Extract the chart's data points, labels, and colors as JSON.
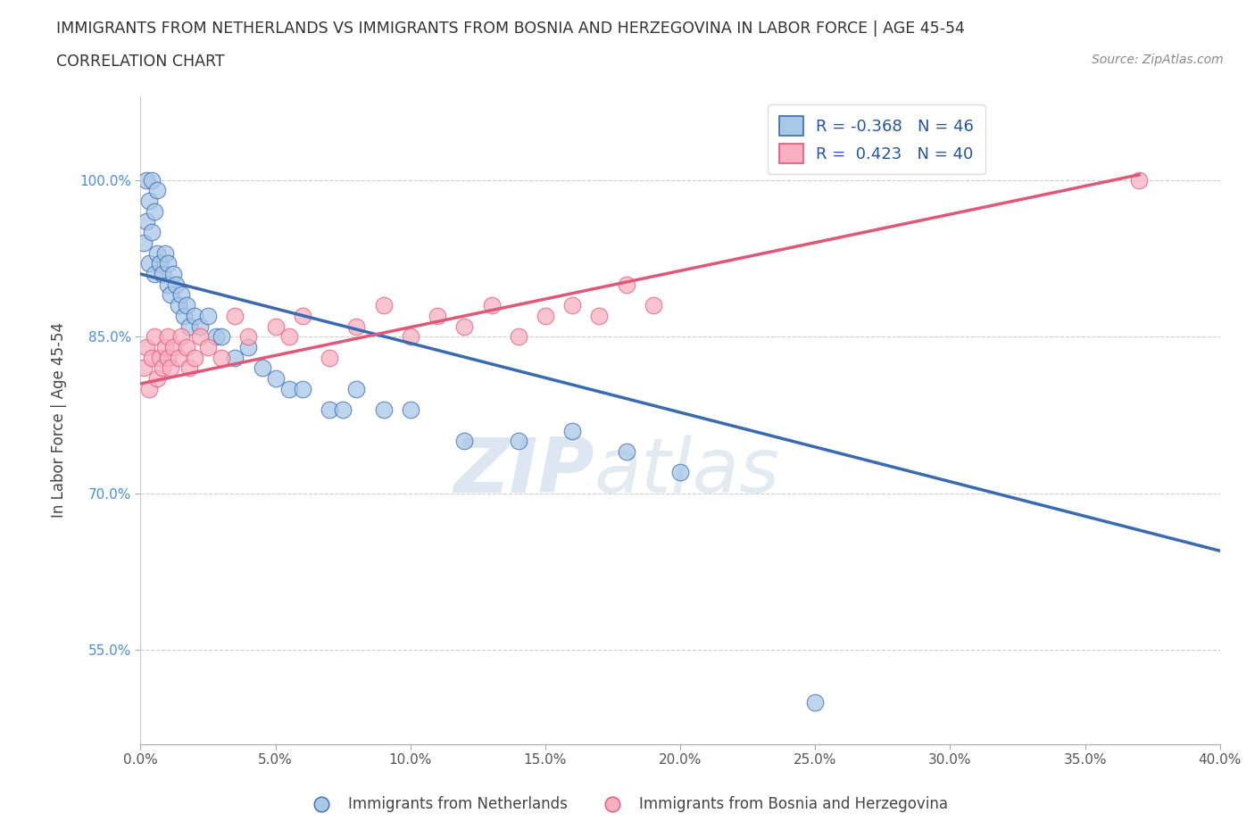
{
  "title_line1": "IMMIGRANTS FROM NETHERLANDS VS IMMIGRANTS FROM BOSNIA AND HERZEGOVINA IN LABOR FORCE | AGE 45-54",
  "title_line2": "CORRELATION CHART",
  "source_text": "Source: ZipAtlas.com",
  "ylabel": "In Labor Force | Age 45-54",
  "xlim": [
    0.0,
    40.0
  ],
  "ylim": [
    46.0,
    108.0
  ],
  "yticks": [
    55.0,
    70.0,
    85.0,
    100.0
  ],
  "xticks": [
    0.0,
    5.0,
    10.0,
    15.0,
    20.0,
    25.0,
    30.0,
    35.0,
    40.0
  ],
  "xtick_labels": [
    "0.0%",
    "5.0%",
    "10.0%",
    "15.0%",
    "20.0%",
    "25.0%",
    "30.0%",
    "35.0%",
    "40.0%"
  ],
  "ytick_labels": [
    "55.0%",
    "70.0%",
    "85.0%",
    "100.0%"
  ],
  "netherlands_color": "#a8c8e8",
  "bosnia_color": "#f8b0c0",
  "netherlands_line_color": "#3a6ab0",
  "bosnia_line_color": "#e05878",
  "netherlands_R": -0.368,
  "netherlands_N": 46,
  "bosnia_R": 0.423,
  "bosnia_N": 40,
  "watermark_zip": "ZIP",
  "watermark_atlas": "atlas",
  "legend_label_netherlands": "Immigrants from Netherlands",
  "legend_label_bosnia": "Immigrants from Bosnia and Herzegovina",
  "nl_line_x0": 0.0,
  "nl_line_y0": 91.0,
  "nl_line_x1": 40.0,
  "nl_line_y1": 64.5,
  "bos_line_x0": 0.0,
  "bos_line_y0": 80.5,
  "bos_line_x1": 37.0,
  "bos_line_y1": 100.5,
  "netherlands_x": [
    0.1,
    0.2,
    0.2,
    0.3,
    0.3,
    0.4,
    0.4,
    0.5,
    0.5,
    0.6,
    0.6,
    0.7,
    0.8,
    0.9,
    1.0,
    1.0,
    1.1,
    1.2,
    1.3,
    1.4,
    1.5,
    1.6,
    1.7,
    1.8,
    2.0,
    2.2,
    2.5,
    2.8,
    3.0,
    3.5,
    4.0,
    4.5,
    5.0,
    5.5,
    6.0,
    7.0,
    7.5,
    8.0,
    9.0,
    10.0,
    12.0,
    14.0,
    16.0,
    18.0,
    20.0,
    25.0
  ],
  "netherlands_y": [
    94.0,
    96.0,
    100.0,
    92.0,
    98.0,
    95.0,
    100.0,
    91.0,
    97.0,
    93.0,
    99.0,
    92.0,
    91.0,
    93.0,
    90.0,
    92.0,
    89.0,
    91.0,
    90.0,
    88.0,
    89.0,
    87.0,
    88.0,
    86.0,
    87.0,
    86.0,
    87.0,
    85.0,
    85.0,
    83.0,
    84.0,
    82.0,
    81.0,
    80.0,
    80.0,
    78.0,
    78.0,
    80.0,
    78.0,
    78.0,
    75.0,
    75.0,
    76.0,
    74.0,
    72.0,
    50.0
  ],
  "bosnia_x": [
    0.1,
    0.2,
    0.3,
    0.4,
    0.5,
    0.6,
    0.7,
    0.8,
    0.9,
    1.0,
    1.0,
    1.1,
    1.2,
    1.4,
    1.5,
    1.7,
    1.8,
    2.0,
    2.2,
    2.5,
    3.0,
    3.5,
    4.0,
    5.0,
    5.5,
    6.0,
    7.0,
    8.0,
    9.0,
    10.0,
    11.0,
    12.0,
    13.0,
    14.0,
    15.0,
    16.0,
    17.0,
    18.0,
    19.0,
    37.0
  ],
  "bosnia_y": [
    82.0,
    84.0,
    80.0,
    83.0,
    85.0,
    81.0,
    83.0,
    82.0,
    84.0,
    83.0,
    85.0,
    82.0,
    84.0,
    83.0,
    85.0,
    84.0,
    82.0,
    83.0,
    85.0,
    84.0,
    83.0,
    87.0,
    85.0,
    86.0,
    85.0,
    87.0,
    83.0,
    86.0,
    88.0,
    85.0,
    87.0,
    86.0,
    88.0,
    85.0,
    87.0,
    88.0,
    87.0,
    90.0,
    88.0,
    100.0
  ]
}
